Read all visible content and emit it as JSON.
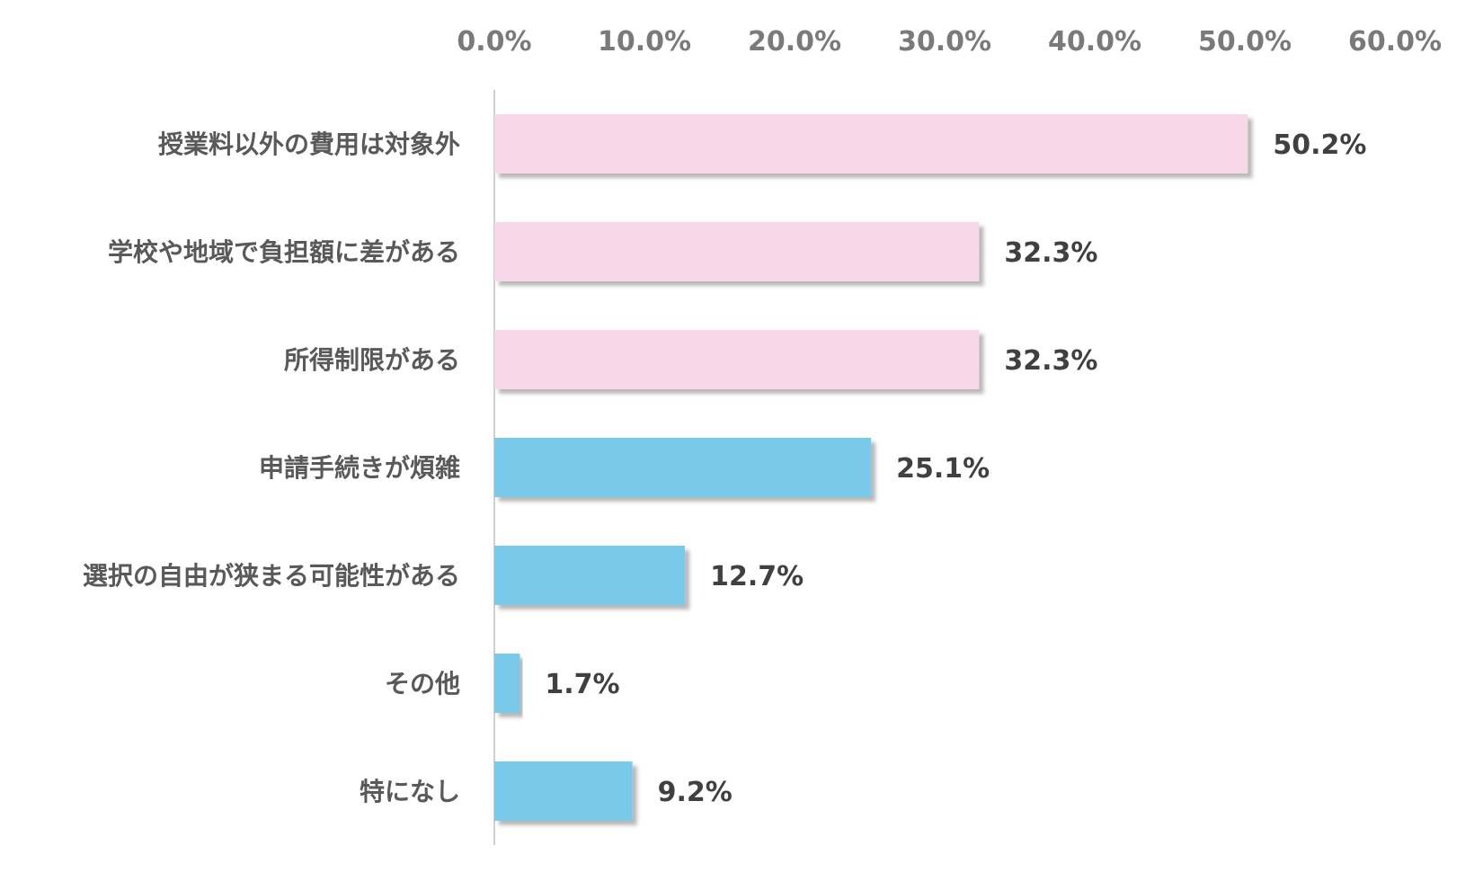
{
  "chart_data": {
    "type": "bar",
    "orientation": "horizontal",
    "categories": [
      "授業料以外の費用は対象外",
      "学校や地域で負担額に差がある",
      "所得制限がある",
      "申請手続きが煩雑",
      "選択の自由が狭まる可能性がある",
      "その他",
      "特になし"
    ],
    "values": [
      50.2,
      32.3,
      32.3,
      25.1,
      12.7,
      1.7,
      9.2
    ],
    "value_labels": [
      "50.2%",
      "32.3%",
      "32.3%",
      "25.1%",
      "12.7%",
      "1.7%",
      "9.2%"
    ],
    "bar_colors": [
      "#f8d7e8",
      "#f8d7e8",
      "#f8d7e8",
      "#78c9ea",
      "#78c9ea",
      "#78c9ea",
      "#78c9ea"
    ],
    "xlim": [
      0,
      60
    ],
    "ticks": [
      0,
      10,
      20,
      30,
      40,
      50,
      60
    ],
    "tick_labels": [
      "0.0%",
      "10.0%",
      "20.0%",
      "30.0%",
      "40.0%",
      "50.0%",
      "60.0%"
    ],
    "axis_position": "top",
    "grid": false,
    "legend": "none"
  }
}
